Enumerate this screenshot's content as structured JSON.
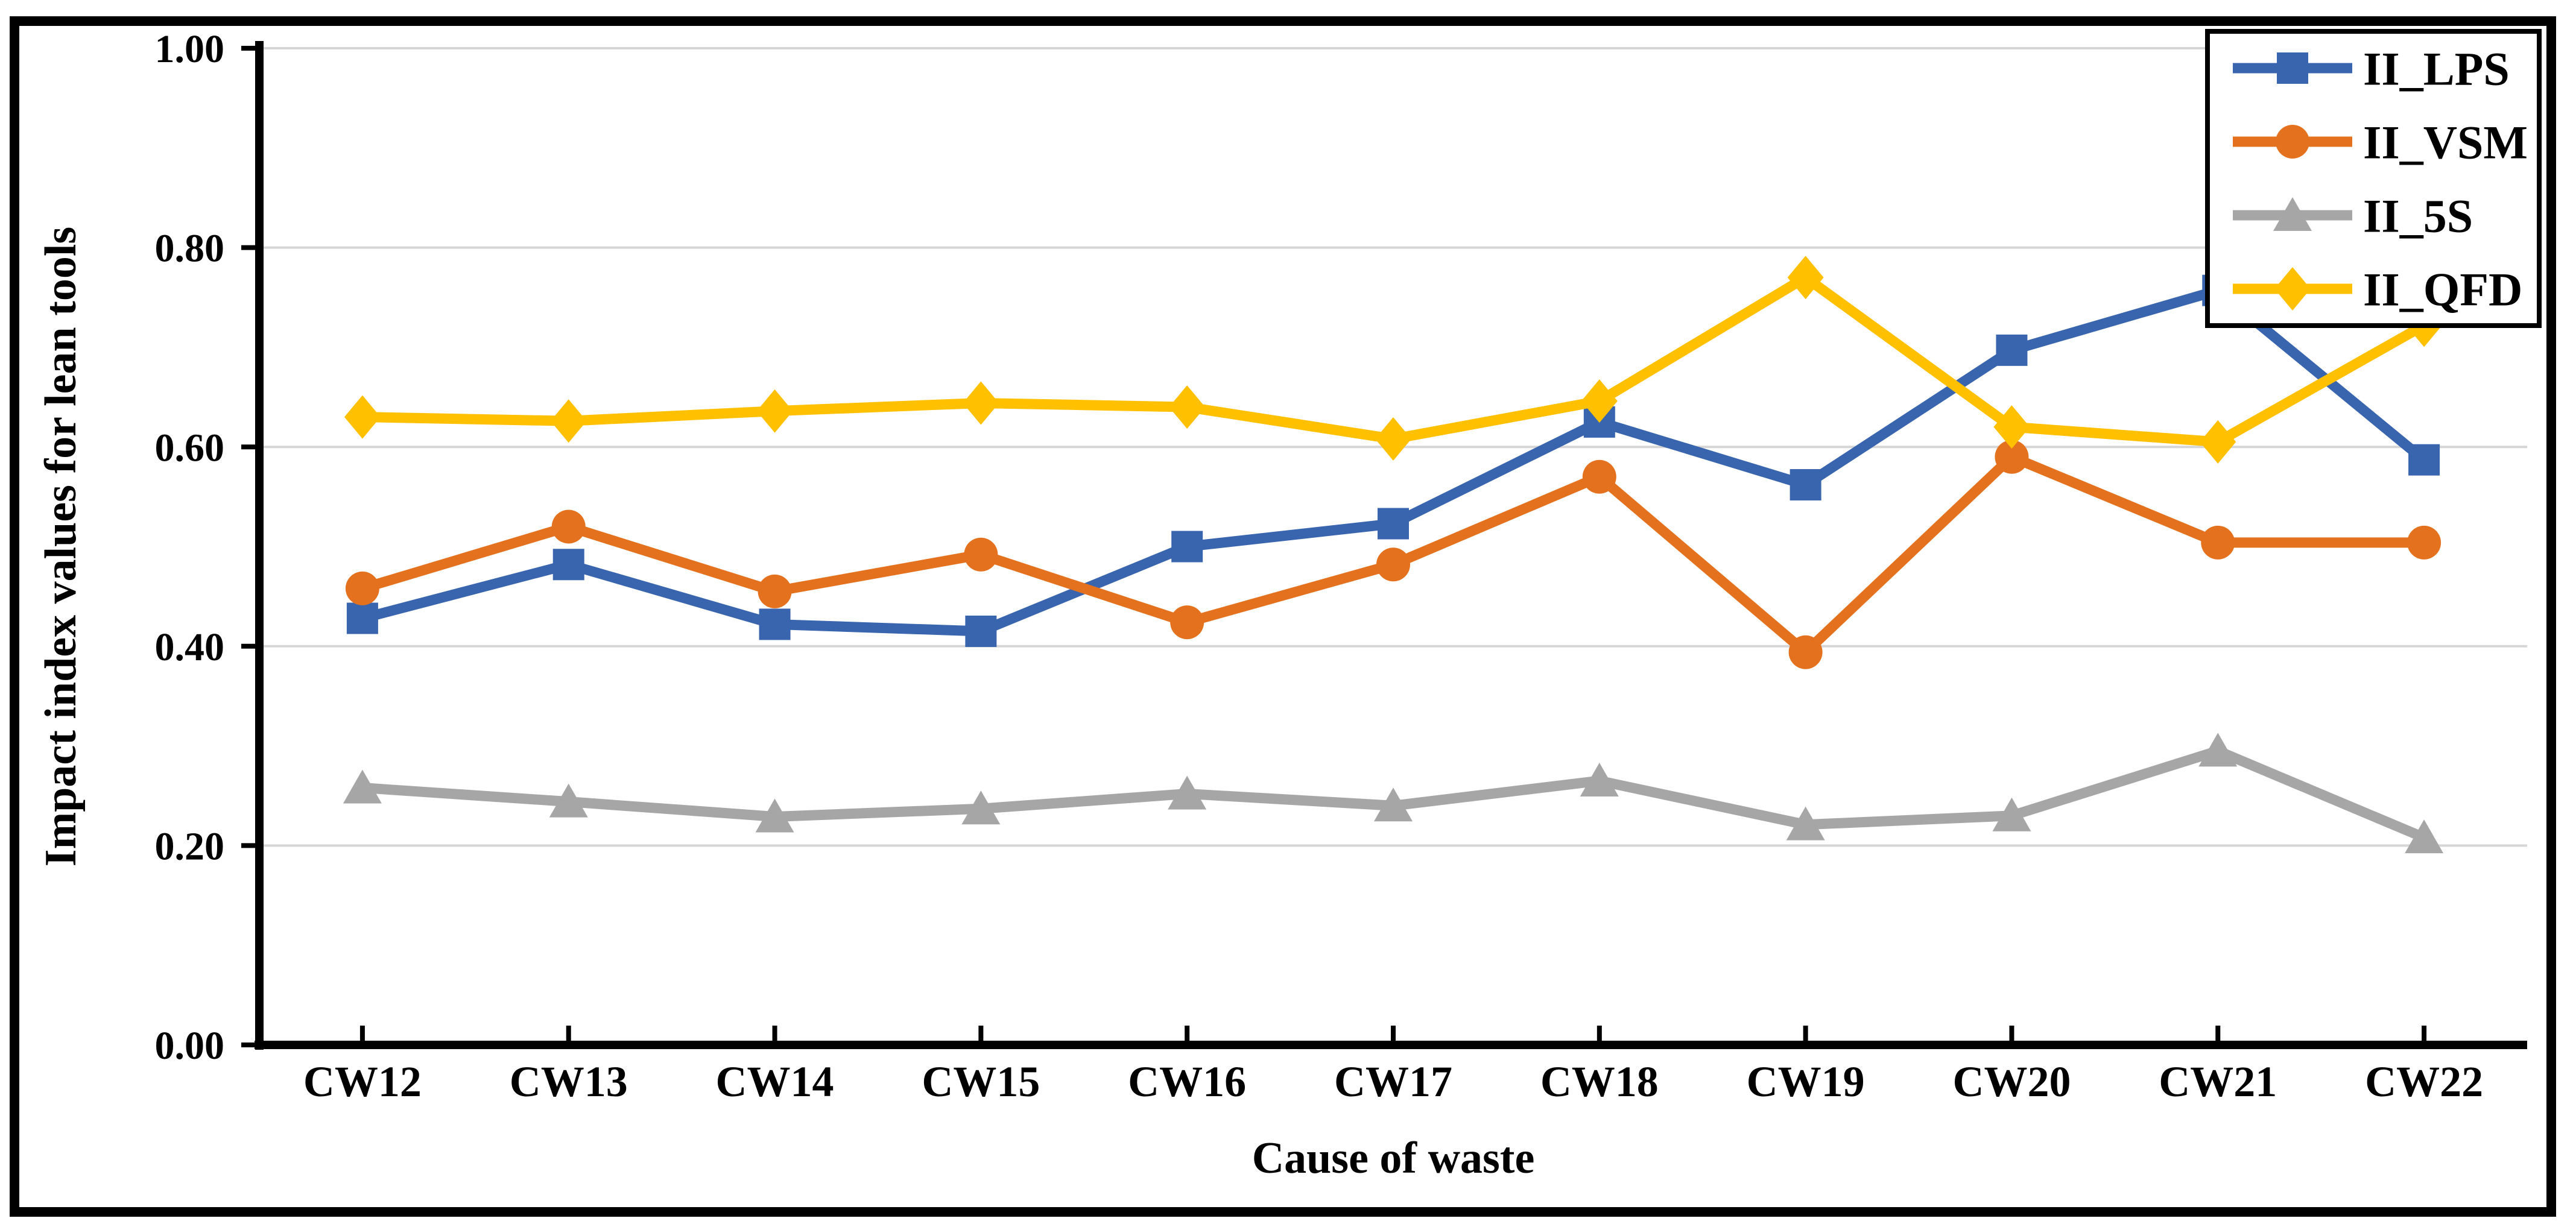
{
  "figure": {
    "background_color": "#FFFFFF",
    "border_color": "#000000",
    "text_color": "#000000",
    "gridline_color": "#D6D6D6"
  },
  "chart_data": {
    "type": "line",
    "title": "",
    "xlabel": "Cause of waste",
    "ylabel": "Impact index values for lean tools",
    "categories": [
      "CW12",
      "CW13",
      "CW14",
      "CW15",
      "CW16",
      "CW17",
      "CW18",
      "CW19",
      "CW20",
      "CW21",
      "CW22"
    ],
    "series": [
      {
        "name": "II_LPS",
        "color": "#3865AE",
        "marker": "square",
        "values": [
          0.428,
          0.482,
          0.422,
          0.415,
          0.5,
          0.523,
          0.625,
          0.562,
          0.697,
          0.757,
          0.587
        ]
      },
      {
        "name": "II_VSM",
        "color": "#E4711E",
        "marker": "circle",
        "values": [
          0.458,
          0.52,
          0.455,
          0.492,
          0.424,
          0.482,
          0.57,
          0.394,
          0.59,
          0.504,
          0.504
        ]
      },
      {
        "name": "II_5S",
        "color": "#A6A6A6",
        "marker": "triangle",
        "values": [
          0.258,
          0.244,
          0.229,
          0.237,
          0.252,
          0.24,
          0.265,
          0.221,
          0.23,
          0.295,
          0.208
        ]
      },
      {
        "name": "II_QFD",
        "color": "#FFC000",
        "marker": "diamond",
        "values": [
          0.63,
          0.626,
          0.636,
          0.644,
          0.64,
          0.608,
          0.646,
          0.77,
          0.62,
          0.605,
          0.722
        ]
      }
    ],
    "ylim": [
      0.0,
      1.0
    ],
    "ytick_step": 0.2,
    "ytick_labels": [
      "0.00",
      "0.20",
      "0.40",
      "0.60",
      "0.80",
      "1.00"
    ],
    "grid": true,
    "legend_position": "top-right",
    "legend_entries": [
      "II_LPS",
      "II_VSM",
      "II_5S",
      "II_QFD"
    ]
  }
}
